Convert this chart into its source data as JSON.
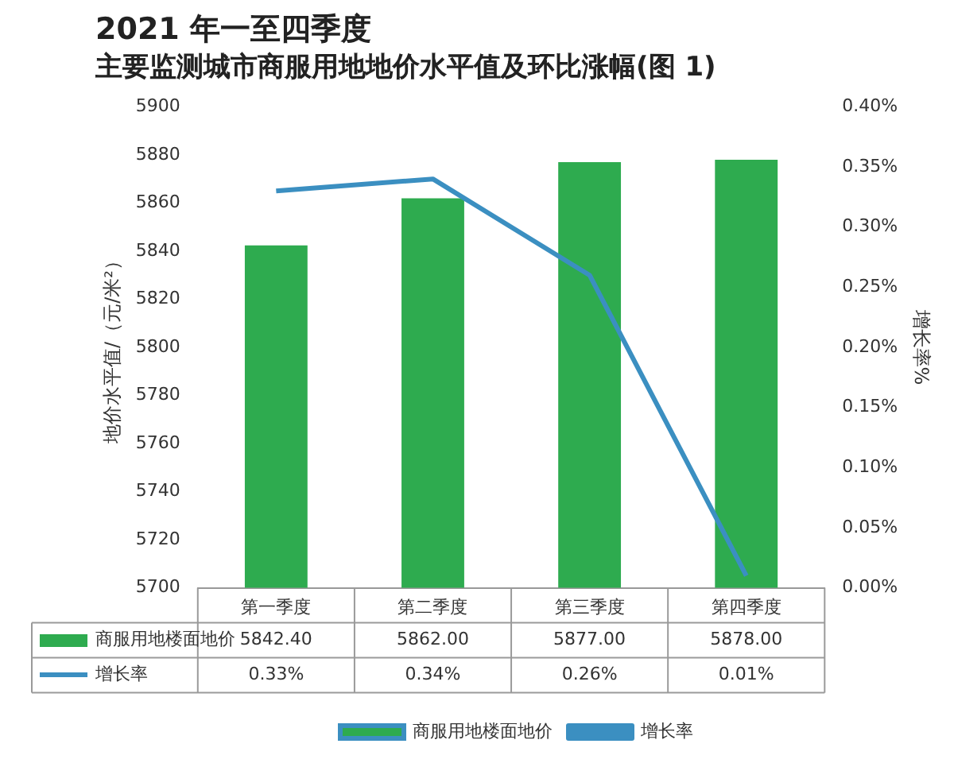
{
  "chart_data": {
    "type": "bar",
    "title": "2021 年一至四季度",
    "subtitle": "主要监测城市商服用地地价水平值及环比涨幅(图 1)",
    "ylabel": "地价水平值/（元/米²）",
    "y2label": "增长率%",
    "categories": [
      "第一季度",
      "第二季度",
      "第三季度",
      "第四季度"
    ],
    "series": [
      {
        "name": "商服用地楼面地价",
        "color": "#2eab4f",
        "values": [
          5842.4,
          5862,
          5877,
          5878
        ],
        "value_labels": [
          "5842.40",
          "5862.00",
          "5877.00",
          "5878.00"
        ]
      },
      {
        "name": "增长率",
        "type": "line",
        "axis": "y2",
        "color": "#3b8fc1",
        "values": [
          0.33,
          0.34,
          0.26,
          0.01
        ],
        "value_labels": [
          "0.33%",
          "0.34%",
          "0.26%",
          "0.01%"
        ]
      }
    ],
    "ylim": [
      5700,
      5900
    ],
    "yticks": [
      5700,
      5720,
      5740,
      5760,
      5780,
      5800,
      5820,
      5840,
      5860,
      5880,
      5900
    ],
    "y2lim": [
      0,
      0.4
    ],
    "y2ticks": [
      {
        "value": 0,
        "label": "0.00%"
      },
      {
        "value": 0.05,
        "label": "0.05%"
      },
      {
        "value": 0.1,
        "label": "0.10%"
      },
      {
        "value": 0.15,
        "label": "0.15%"
      },
      {
        "value": 0.2,
        "label": "0.20%"
      },
      {
        "value": 0.25,
        "label": "0.25%"
      },
      {
        "value": 0.3,
        "label": "0.30%"
      },
      {
        "value": 0.35,
        "label": "0.35%"
      },
      {
        "value": 0.4,
        "label": "0.40%"
      }
    ],
    "grid": false,
    "legend": "bottom",
    "marker": "none",
    "line_style": "solid"
  }
}
